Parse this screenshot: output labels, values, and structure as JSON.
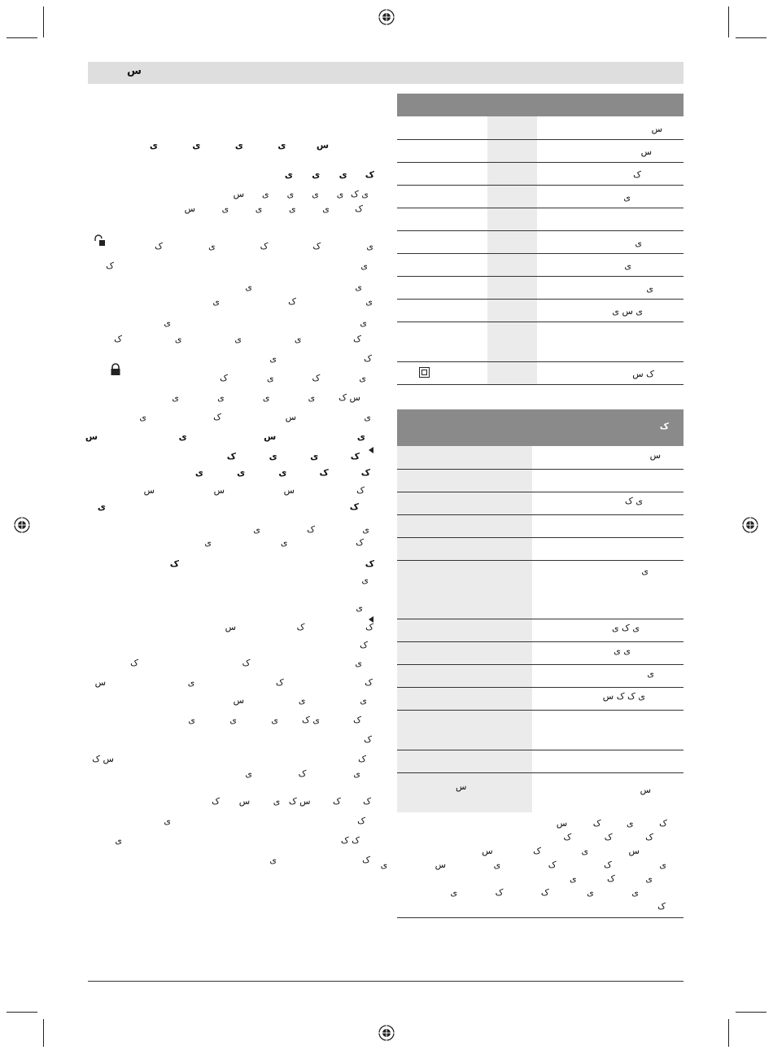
{
  "header": {
    "label": "س"
  },
  "left_text": {
    "heading": [
      "س",
      "ی",
      "ی",
      "ی",
      "ی"
    ],
    "lines": [
      {
        "glyphs": [
          "ک",
          "ی",
          "ی",
          "ی"
        ],
        "bold": true
      },
      {
        "glyphs": [
          "ی ک",
          "ی",
          "ی",
          "ی",
          "ی",
          "س"
        ]
      },
      {
        "glyphs": [
          "ک",
          "ی",
          "ی",
          "ی",
          "ی",
          "س"
        ]
      },
      {
        "glyphs": [
          "ی",
          "ک",
          "ک",
          "ی",
          "ک"
        ]
      },
      {
        "glyphs": [
          "ی",
          "ک"
        ]
      },
      {
        "glyphs": [
          "ی",
          "ی"
        ]
      },
      {
        "glyphs": [
          "ی",
          "ک",
          "ی"
        ]
      },
      {
        "glyphs": [
          "ی",
          "ی"
        ]
      },
      {
        "glyphs": [
          "ک",
          "ی",
          "ی",
          "ی",
          "ک"
        ]
      },
      {
        "glyphs": [
          "ک",
          "ی"
        ]
      },
      {
        "glyphs": [
          "ی",
          "ک",
          "ی",
          "ک"
        ]
      },
      {
        "glyphs": [
          "س ک",
          "ی",
          "ی",
          "ی",
          "ی"
        ]
      },
      {
        "glyphs": [
          "ی",
          "س",
          "ک",
          "ی"
        ]
      },
      {
        "glyphs": [
          "ی",
          "س",
          "ی",
          "س"
        ],
        "bold": true
      },
      {
        "glyphs": [
          "ک",
          "ی",
          "ی",
          "ک"
        ],
        "bold": true
      },
      {
        "glyphs": [
          "ک",
          "ک",
          "ی",
          "ی",
          "ی"
        ],
        "bold": true
      },
      {
        "glyphs": [
          "ک",
          "س",
          "س",
          "س"
        ]
      },
      {
        "glyphs": [
          "ک",
          "ی"
        ],
        "bold": true
      },
      {
        "glyphs": [
          "ی",
          "ک",
          "ی"
        ]
      },
      {
        "glyphs": [
          "ک",
          "ی",
          "ی"
        ]
      },
      {
        "glyphs": [
          "ک",
          "ک"
        ],
        "bold": true
      },
      {
        "glyphs": [
          "ی"
        ]
      },
      {
        "glyphs": [
          "ی"
        ]
      },
      {
        "glyphs": [
          "ک",
          "ک",
          "س"
        ]
      },
      {
        "glyphs": [
          "ک"
        ]
      },
      {
        "glyphs": [
          "ی",
          "ک",
          "ک"
        ]
      },
      {
        "glyphs": [
          "ک",
          "ک",
          "ی",
          "س"
        ]
      },
      {
        "glyphs": [
          "ی",
          "ی",
          "س"
        ]
      },
      {
        "glyphs": [
          "ک",
          "ی ک",
          "ی",
          "ی",
          "ی"
        ]
      },
      {
        "glyphs": [
          "ک"
        ]
      },
      {
        "glyphs": [
          "ک",
          "س ک"
        ]
      },
      {
        "glyphs": [
          "ی",
          "ک",
          "ی"
        ]
      },
      {
        "glyphs": [
          "ک",
          "ک",
          "س ک",
          "ی",
          "س",
          "ک"
        ]
      },
      {
        "glyphs": [
          "ک",
          "ی"
        ]
      },
      {
        "glyphs": [
          "ک ک",
          "ی"
        ]
      },
      {
        "glyphs": [
          "ک",
          "ی"
        ]
      }
    ]
  },
  "table1": {
    "rows": [
      {
        "text": "س"
      },
      {
        "text": "س"
      },
      {
        "text": "ک"
      },
      {
        "text": "ی"
      },
      {
        "text": ""
      },
      {
        "text": "ی"
      },
      {
        "text": "ی"
      },
      {
        "text": "ی"
      },
      {
        "text": "ی س ی"
      },
      {
        "text": ""
      },
      {
        "text": "ک س"
      }
    ]
  },
  "table2": {
    "header": "ک",
    "rows": [
      {
        "text": "س"
      },
      {
        "text": ""
      },
      {
        "text": "ی ک"
      },
      {
        "text": ""
      },
      {
        "text": ""
      },
      {
        "text": "ی"
      },
      {
        "text": "ی ک ی"
      },
      {
        "text": "ی ی"
      },
      {
        "text": "ی"
      },
      {
        "text": "ی ک ک س"
      },
      {
        "text": ""
      },
      {
        "text": ""
      },
      {
        "text": "س",
        "left": "س"
      }
    ],
    "note_lines": [
      "ک ی ک س",
      "ک ک ک",
      "س ی ک س",
      "ی ک ک ی س ی",
      "ی ک ی",
      "ی ی ک ک ی",
      "ک"
    ]
  }
}
